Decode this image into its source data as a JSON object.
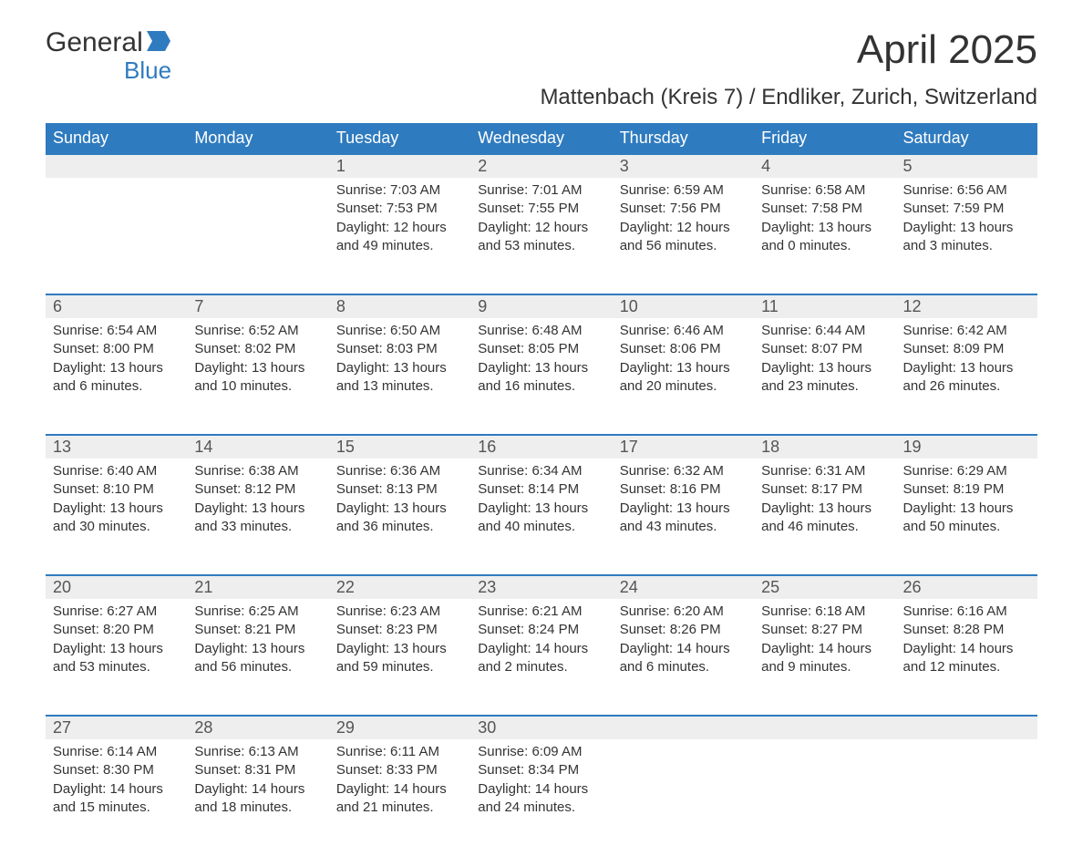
{
  "brand": {
    "general": "General",
    "blue": "Blue"
  },
  "title": "April 2025",
  "subtitle": "Mattenbach (Kreis 7) / Endliker, Zurich, Switzerland",
  "colors": {
    "header_bg": "#2f7bbf",
    "header_text": "#ffffff",
    "daynum_bg": "#eeeeee",
    "border": "#2f7bbf",
    "body_text": "#333333",
    "background": "#ffffff"
  },
  "dayNames": [
    "Sunday",
    "Monday",
    "Tuesday",
    "Wednesday",
    "Thursday",
    "Friday",
    "Saturday"
  ],
  "weeks": [
    [
      null,
      null,
      {
        "n": "1",
        "sr": "7:03 AM",
        "ss": "7:53 PM",
        "dl": "12 hours and 49 minutes."
      },
      {
        "n": "2",
        "sr": "7:01 AM",
        "ss": "7:55 PM",
        "dl": "12 hours and 53 minutes."
      },
      {
        "n": "3",
        "sr": "6:59 AM",
        "ss": "7:56 PM",
        "dl": "12 hours and 56 minutes."
      },
      {
        "n": "4",
        "sr": "6:58 AM",
        "ss": "7:58 PM",
        "dl": "13 hours and 0 minutes."
      },
      {
        "n": "5",
        "sr": "6:56 AM",
        "ss": "7:59 PM",
        "dl": "13 hours and 3 minutes."
      }
    ],
    [
      {
        "n": "6",
        "sr": "6:54 AM",
        "ss": "8:00 PM",
        "dl": "13 hours and 6 minutes."
      },
      {
        "n": "7",
        "sr": "6:52 AM",
        "ss": "8:02 PM",
        "dl": "13 hours and 10 minutes."
      },
      {
        "n": "8",
        "sr": "6:50 AM",
        "ss": "8:03 PM",
        "dl": "13 hours and 13 minutes."
      },
      {
        "n": "9",
        "sr": "6:48 AM",
        "ss": "8:05 PM",
        "dl": "13 hours and 16 minutes."
      },
      {
        "n": "10",
        "sr": "6:46 AM",
        "ss": "8:06 PM",
        "dl": "13 hours and 20 minutes."
      },
      {
        "n": "11",
        "sr": "6:44 AM",
        "ss": "8:07 PM",
        "dl": "13 hours and 23 minutes."
      },
      {
        "n": "12",
        "sr": "6:42 AM",
        "ss": "8:09 PM",
        "dl": "13 hours and 26 minutes."
      }
    ],
    [
      {
        "n": "13",
        "sr": "6:40 AM",
        "ss": "8:10 PM",
        "dl": "13 hours and 30 minutes."
      },
      {
        "n": "14",
        "sr": "6:38 AM",
        "ss": "8:12 PM",
        "dl": "13 hours and 33 minutes."
      },
      {
        "n": "15",
        "sr": "6:36 AM",
        "ss": "8:13 PM",
        "dl": "13 hours and 36 minutes."
      },
      {
        "n": "16",
        "sr": "6:34 AM",
        "ss": "8:14 PM",
        "dl": "13 hours and 40 minutes."
      },
      {
        "n": "17",
        "sr": "6:32 AM",
        "ss": "8:16 PM",
        "dl": "13 hours and 43 minutes."
      },
      {
        "n": "18",
        "sr": "6:31 AM",
        "ss": "8:17 PM",
        "dl": "13 hours and 46 minutes."
      },
      {
        "n": "19",
        "sr": "6:29 AM",
        "ss": "8:19 PM",
        "dl": "13 hours and 50 minutes."
      }
    ],
    [
      {
        "n": "20",
        "sr": "6:27 AM",
        "ss": "8:20 PM",
        "dl": "13 hours and 53 minutes."
      },
      {
        "n": "21",
        "sr": "6:25 AM",
        "ss": "8:21 PM",
        "dl": "13 hours and 56 minutes."
      },
      {
        "n": "22",
        "sr": "6:23 AM",
        "ss": "8:23 PM",
        "dl": "13 hours and 59 minutes."
      },
      {
        "n": "23",
        "sr": "6:21 AM",
        "ss": "8:24 PM",
        "dl": "14 hours and 2 minutes."
      },
      {
        "n": "24",
        "sr": "6:20 AM",
        "ss": "8:26 PM",
        "dl": "14 hours and 6 minutes."
      },
      {
        "n": "25",
        "sr": "6:18 AM",
        "ss": "8:27 PM",
        "dl": "14 hours and 9 minutes."
      },
      {
        "n": "26",
        "sr": "6:16 AM",
        "ss": "8:28 PM",
        "dl": "14 hours and 12 minutes."
      }
    ],
    [
      {
        "n": "27",
        "sr": "6:14 AM",
        "ss": "8:30 PM",
        "dl": "14 hours and 15 minutes."
      },
      {
        "n": "28",
        "sr": "6:13 AM",
        "ss": "8:31 PM",
        "dl": "14 hours and 18 minutes."
      },
      {
        "n": "29",
        "sr": "6:11 AM",
        "ss": "8:33 PM",
        "dl": "14 hours and 21 minutes."
      },
      {
        "n": "30",
        "sr": "6:09 AM",
        "ss": "8:34 PM",
        "dl": "14 hours and 24 minutes."
      },
      null,
      null,
      null
    ]
  ],
  "labels": {
    "sunrise": "Sunrise: ",
    "sunset": "Sunset: ",
    "daylight": "Daylight: "
  }
}
